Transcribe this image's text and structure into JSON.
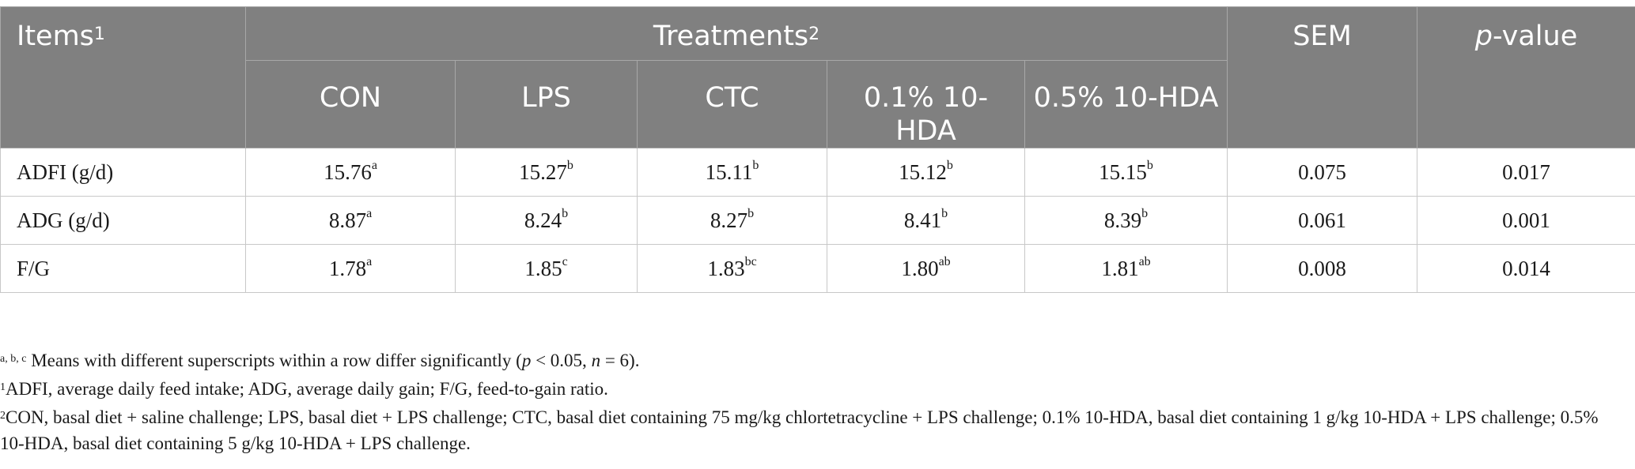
{
  "table": {
    "header": {
      "items": "Items",
      "items_sup": "1",
      "treatments": "Treatments",
      "treatments_sup": "2",
      "sem": "SEM",
      "pvalue_italic": "p",
      "pvalue_rest": "-value",
      "groups": [
        "CON",
        "LPS",
        "CTC",
        "0.1% 10-HDA",
        "0.5% 10-HDA"
      ]
    },
    "rows": [
      {
        "item": "ADFI (g/d)",
        "cells": [
          {
            "value": "15.76",
            "sup": "a"
          },
          {
            "value": "15.27",
            "sup": "b"
          },
          {
            "value": "15.11",
            "sup": "b"
          },
          {
            "value": "15.12",
            "sup": "b"
          },
          {
            "value": "15.15",
            "sup": "b"
          }
        ],
        "sem": "0.075",
        "pvalue": "0.017"
      },
      {
        "item": "ADG (g/d)",
        "cells": [
          {
            "value": "8.87",
            "sup": "a"
          },
          {
            "value": "8.24",
            "sup": "b"
          },
          {
            "value": "8.27",
            "sup": "b"
          },
          {
            "value": "8.41",
            "sup": "b"
          },
          {
            "value": "8.39",
            "sup": "b"
          }
        ],
        "sem": "0.061",
        "pvalue": "0.001"
      },
      {
        "item": "F/G",
        "cells": [
          {
            "value": "1.78",
            "sup": "a"
          },
          {
            "value": "1.85",
            "sup": "c"
          },
          {
            "value": "1.83",
            "sup": "bc"
          },
          {
            "value": "1.80",
            "sup": "ab"
          },
          {
            "value": "1.81",
            "sup": "ab"
          }
        ],
        "sem": "0.008",
        "pvalue": "0.014"
      }
    ]
  },
  "footnotes": {
    "sig": {
      "sup": "a, b, c",
      "text_before": " Means with different superscripts within a row differ significantly (",
      "p": "p",
      "text_mid": " < 0.05, ",
      "n": "n",
      "text_after": " = 6)."
    },
    "note1": {
      "sup": "1",
      "text": "ADFI, average daily feed intake; ADG, average daily gain; F/G, feed-to-gain ratio."
    },
    "note2": {
      "sup": "2",
      "text": "CON, basal diet + saline challenge; LPS, basal diet + LPS challenge; CTC, basal diet containing 75 mg/kg chlortetracycline + LPS challenge; 0.1% 10-HDA, basal diet containing 1 g/kg 10-HDA + LPS challenge; 0.5% 10-HDA, basal diet containing 5 g/kg 10-HDA + LPS challenge."
    }
  }
}
